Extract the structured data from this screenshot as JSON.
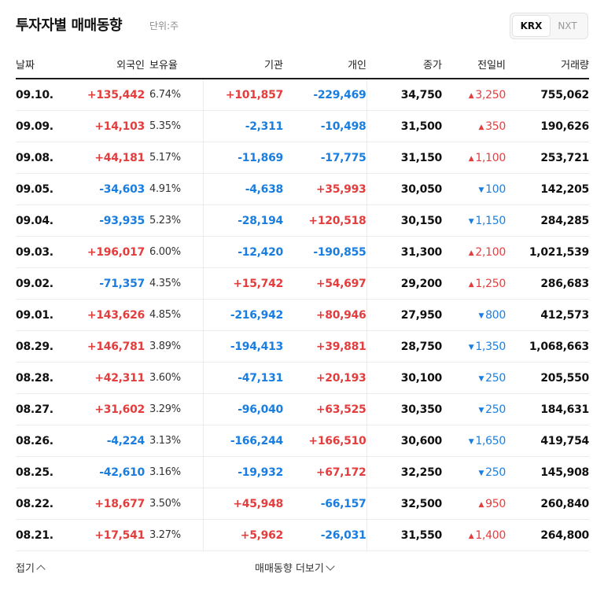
{
  "header": {
    "title": "투자자별 매매동향",
    "unit": "단위:주"
  },
  "market_toggle": {
    "options": [
      "KRX",
      "NXT"
    ],
    "selected": "KRX"
  },
  "columns": {
    "date": "날짜",
    "foreign": "외국인",
    "holding": "보유율",
    "institution": "기관",
    "individual": "개인",
    "close": "종가",
    "change": "전일비",
    "volume": "거래량"
  },
  "rows": [
    {
      "date": "09.10.",
      "foreign": "+135,442",
      "holding": "6.74%",
      "institution": "+101,857",
      "individual": "-229,469",
      "close": "34,750",
      "change": "3,250",
      "change_dir": "up",
      "volume": "755,062"
    },
    {
      "date": "09.09.",
      "foreign": "+14,103",
      "holding": "5.35%",
      "institution": "-2,311",
      "individual": "-10,498",
      "close": "31,500",
      "change": "350",
      "change_dir": "up",
      "volume": "190,626"
    },
    {
      "date": "09.08.",
      "foreign": "+44,181",
      "holding": "5.17%",
      "institution": "-11,869",
      "individual": "-17,775",
      "close": "31,150",
      "change": "1,100",
      "change_dir": "up",
      "volume": "253,721"
    },
    {
      "date": "09.05.",
      "foreign": "-34,603",
      "holding": "4.91%",
      "institution": "-4,638",
      "individual": "+35,993",
      "close": "30,050",
      "change": "100",
      "change_dir": "down",
      "volume": "142,205"
    },
    {
      "date": "09.04.",
      "foreign": "-93,935",
      "holding": "5.23%",
      "institution": "-28,194",
      "individual": "+120,518",
      "close": "30,150",
      "change": "1,150",
      "change_dir": "down",
      "volume": "284,285"
    },
    {
      "date": "09.03.",
      "foreign": "+196,017",
      "holding": "6.00%",
      "institution": "-12,420",
      "individual": "-190,855",
      "close": "31,300",
      "change": "2,100",
      "change_dir": "up",
      "volume": "1,021,539"
    },
    {
      "date": "09.02.",
      "foreign": "-71,357",
      "holding": "4.35%",
      "institution": "+15,742",
      "individual": "+54,697",
      "close": "29,200",
      "change": "1,250",
      "change_dir": "up",
      "volume": "286,683"
    },
    {
      "date": "09.01.",
      "foreign": "+143,626",
      "holding": "4.85%",
      "institution": "-216,942",
      "individual": "+80,946",
      "close": "27,950",
      "change": "800",
      "change_dir": "down",
      "volume": "412,573"
    },
    {
      "date": "08.29.",
      "foreign": "+146,781",
      "holding": "3.89%",
      "institution": "-194,413",
      "individual": "+39,881",
      "close": "28,750",
      "change": "1,350",
      "change_dir": "down",
      "volume": "1,068,663"
    },
    {
      "date": "08.28.",
      "foreign": "+42,311",
      "holding": "3.60%",
      "institution": "-47,131",
      "individual": "+20,193",
      "close": "30,100",
      "change": "250",
      "change_dir": "down",
      "volume": "205,550"
    },
    {
      "date": "08.27.",
      "foreign": "+31,602",
      "holding": "3.29%",
      "institution": "-96,040",
      "individual": "+63,525",
      "close": "30,350",
      "change": "250",
      "change_dir": "down",
      "volume": "184,631"
    },
    {
      "date": "08.26.",
      "foreign": "-4,224",
      "holding": "3.13%",
      "institution": "-166,244",
      "individual": "+166,510",
      "close": "30,600",
      "change": "1,650",
      "change_dir": "down",
      "volume": "419,754"
    },
    {
      "date": "08.25.",
      "foreign": "-42,610",
      "holding": "3.16%",
      "institution": "-19,932",
      "individual": "+67,172",
      "close": "32,250",
      "change": "250",
      "change_dir": "down",
      "volume": "145,908"
    },
    {
      "date": "08.22.",
      "foreign": "+18,677",
      "holding": "3.50%",
      "institution": "+45,948",
      "individual": "-66,157",
      "close": "32,500",
      "change": "950",
      "change_dir": "up",
      "volume": "260,840"
    },
    {
      "date": "08.21.",
      "foreign": "+17,541",
      "holding": "3.27%",
      "institution": "+5,962",
      "individual": "-26,031",
      "close": "31,550",
      "change": "1,400",
      "change_dir": "up",
      "volume": "264,800"
    }
  ],
  "footer": {
    "fold_label": "접기",
    "more_label": "매매동향 더보기"
  },
  "colors": {
    "up": "#e33d3d",
    "down": "#1a7ee0"
  },
  "icons": {
    "up_change": "triangle-up-icon",
    "down_change": "triangle-down-icon"
  }
}
